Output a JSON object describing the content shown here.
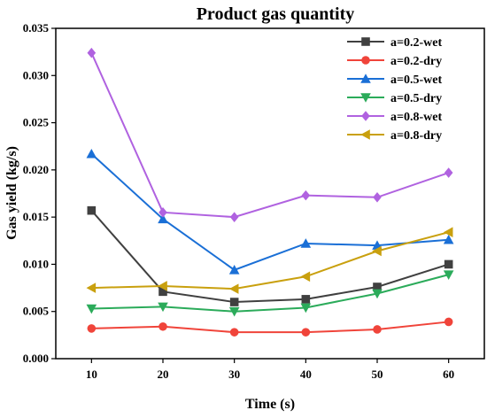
{
  "chart_data": {
    "type": "line",
    "title": "Product gas quantity",
    "xlabel": "Time (s)",
    "ylabel": "Gas yield (kg/s)",
    "x": [
      10,
      20,
      30,
      40,
      50,
      60
    ],
    "xticks": [
      "10",
      "20",
      "30",
      "40",
      "50",
      "60"
    ],
    "yticks": [
      "0.000",
      "0.005",
      "0.010",
      "0.015",
      "0.020",
      "0.025",
      "0.030",
      "0.035"
    ],
    "xlim": [
      5,
      65
    ],
    "ylim": [
      0,
      0.035
    ],
    "grid": false,
    "legend_position": "top-right",
    "series": [
      {
        "name": "a=0.2-wet",
        "color": "#404040",
        "marker": "square",
        "values": [
          0.0157,
          0.0071,
          0.006,
          0.0063,
          0.0076,
          0.01
        ]
      },
      {
        "name": "a=0.2-dry",
        "color": "#f0443a",
        "marker": "circle",
        "values": [
          0.0032,
          0.0034,
          0.0028,
          0.0028,
          0.0031,
          0.0039
        ]
      },
      {
        "name": "a=0.5-wet",
        "color": "#1a6fd6",
        "marker": "triangle-up",
        "values": [
          0.0217,
          0.0148,
          0.0094,
          0.0122,
          0.012,
          0.0126
        ]
      },
      {
        "name": "a=0.5-dry",
        "color": "#2bab5a",
        "marker": "triangle-down",
        "values": [
          0.0053,
          0.0055,
          0.005,
          0.0054,
          0.0069,
          0.0089
        ]
      },
      {
        "name": "a=0.8-wet",
        "color": "#b062e0",
        "marker": "diamond",
        "values": [
          0.0324,
          0.0155,
          0.015,
          0.0173,
          0.0171,
          0.0197
        ]
      },
      {
        "name": "a=0.8-dry",
        "color": "#c9a00e",
        "marker": "triangle-left",
        "values": [
          0.0075,
          0.0077,
          0.0074,
          0.0087,
          0.0114,
          0.0134
        ]
      }
    ]
  }
}
